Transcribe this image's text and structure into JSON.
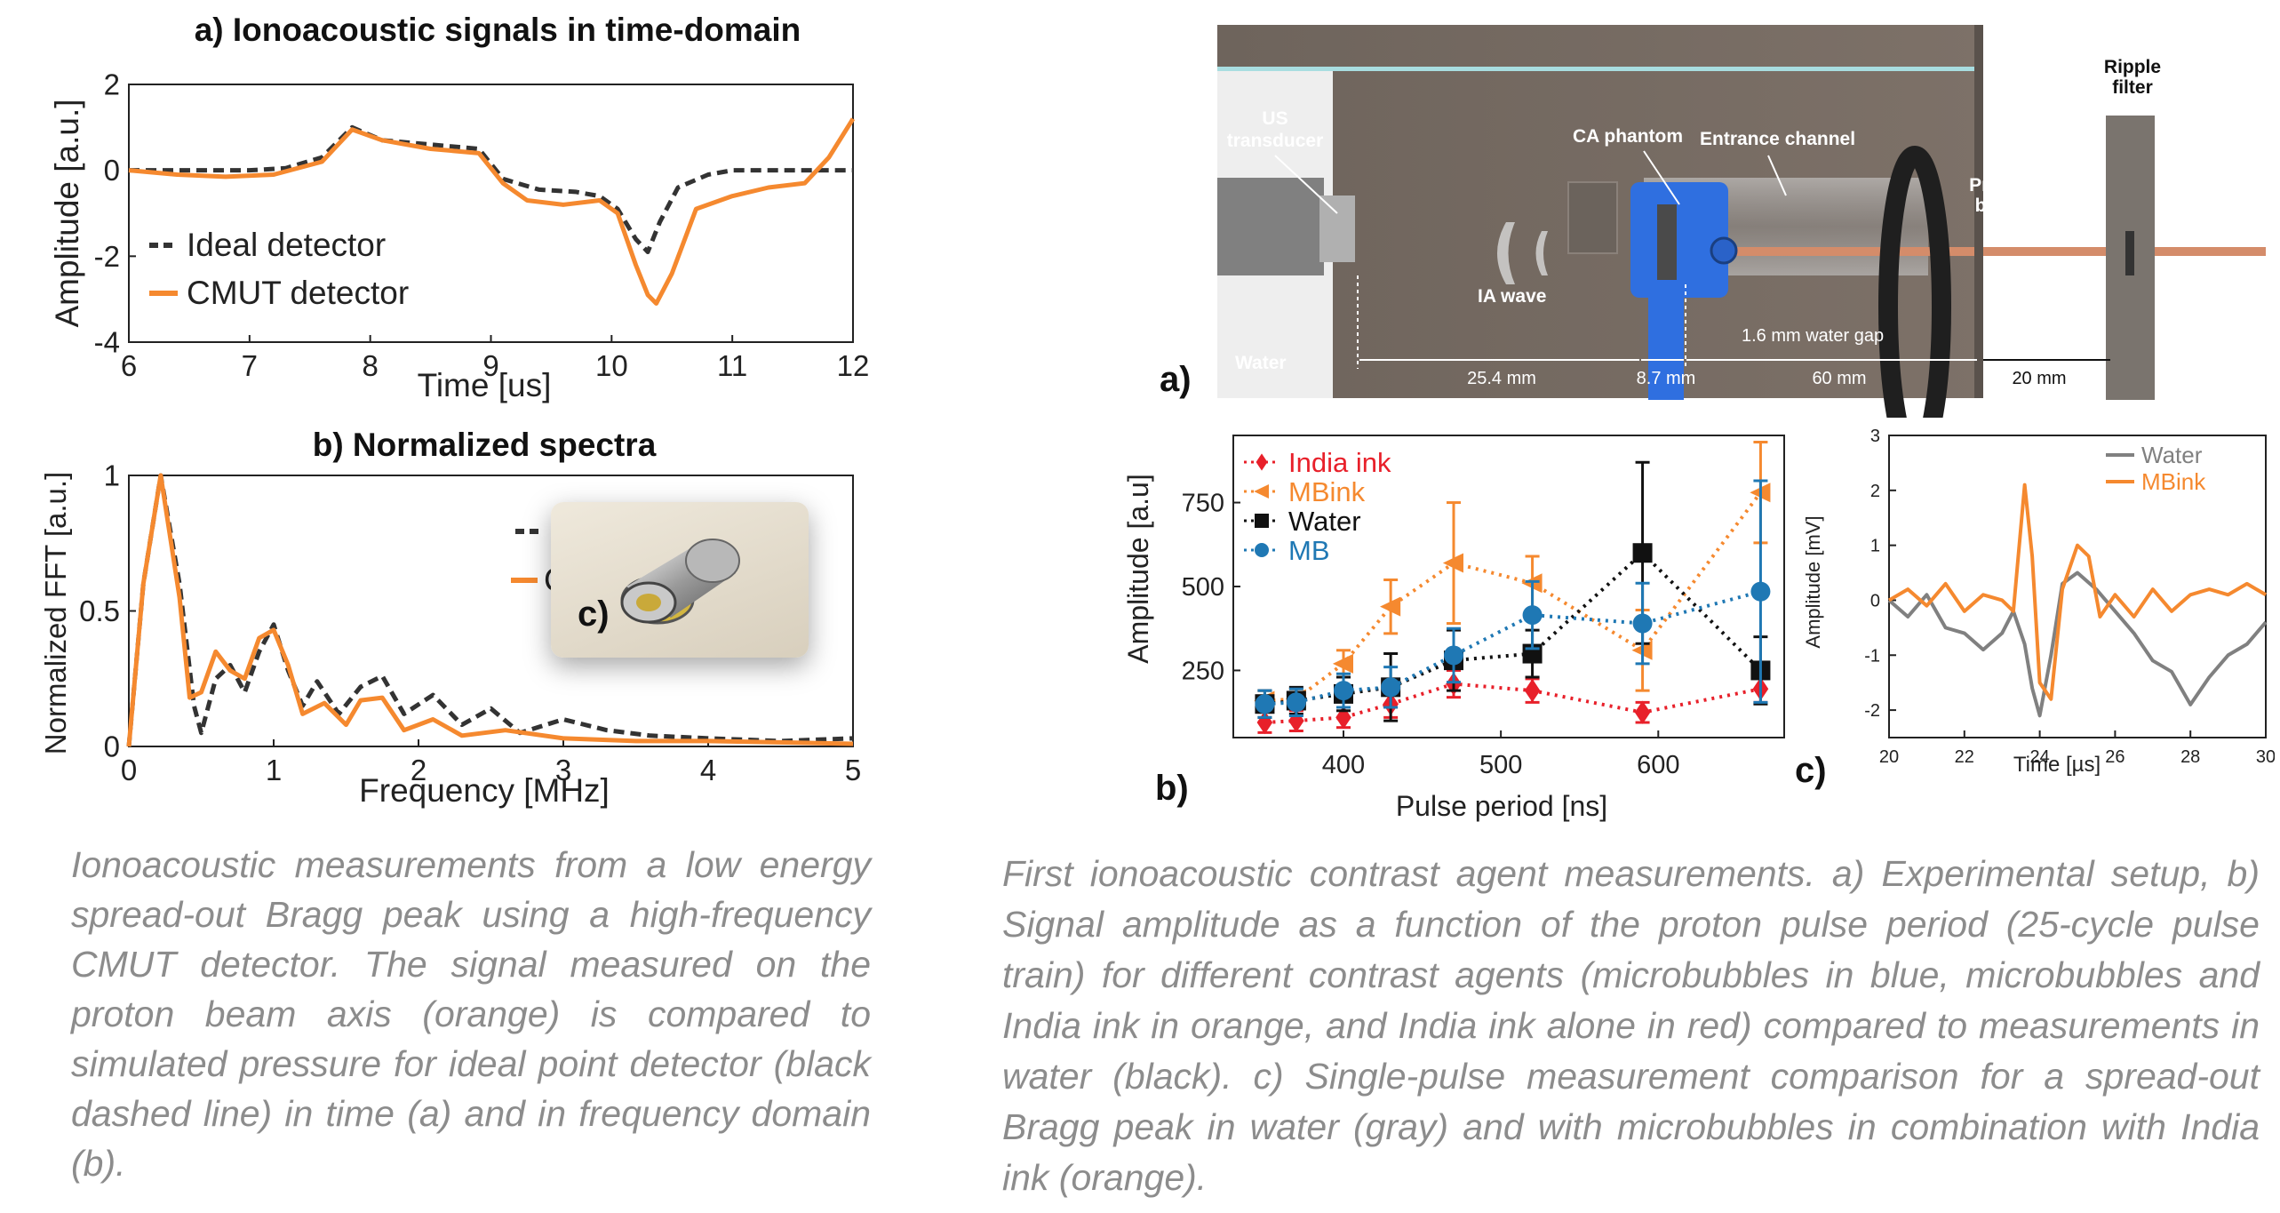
{
  "charts": {
    "a": {
      "title": "a) Ionoacoustic signals in time-domain",
      "xlabel": "Time [us]",
      "ylabel": "Amplitude [a.u.]",
      "legend": [
        "Ideal detector",
        "CMUT detector"
      ]
    },
    "b": {
      "title": "b) Normalized spectra",
      "xlabel": "Frequency [MHz]",
      "ylabel": "Normalized FFT [a.u.]",
      "inset_label": "c)",
      "legend_fragment": "C"
    },
    "setup": {
      "panel_label": "a)",
      "labels": {
        "us_transducer_1": "US",
        "us_transducer_2": "transducer",
        "ca_phantom": "CA phantom",
        "entrance_channel": "Entrance channel",
        "ripple_1": "Ripple",
        "ripple_2": "filter",
        "proton_1": "Proton",
        "proton_2": "beam",
        "ia_wave": "IA wave",
        "water": "Water",
        "gap": "1.6 mm water gap",
        "d1": "25.4 mm",
        "d2": "8.7 mm",
        "d3": "60 mm",
        "d4": "20 mm"
      }
    },
    "pulse": {
      "panel_label": "b)",
      "xlabel": "Pulse period [ns]",
      "ylabel": "Amplitude [a.u]"
    },
    "single": {
      "panel_label": "c)",
      "xlabel": "Time [µs]",
      "ylabel": "Amplitude [mV]"
    }
  },
  "chart_data": [
    {
      "type": "line",
      "title": "a) Ionoacoustic signals in time-domain",
      "xlabel": "Time [us]",
      "ylabel": "Amplitude [a.u.]",
      "xlim": [
        6,
        12
      ],
      "ylim": [
        -4,
        2
      ],
      "xticks": [
        6,
        7,
        8,
        9,
        10,
        11,
        12
      ],
      "yticks": [
        -4,
        -2,
        0,
        2
      ],
      "legend_position": "lower-left",
      "series": [
        {
          "name": "Ideal detector",
          "style": "dashed",
          "color": "#333333",
          "x": [
            6,
            6.5,
            7,
            7.3,
            7.6,
            7.85,
            8.1,
            8.5,
            8.9,
            9.1,
            9.4,
            9.7,
            9.9,
            10.05,
            10.2,
            10.3,
            10.4,
            10.55,
            10.8,
            11,
            11.5,
            12
          ],
          "y": [
            0,
            0,
            0,
            0.05,
            0.3,
            1.0,
            0.7,
            0.6,
            0.5,
            -0.2,
            -0.45,
            -0.5,
            -0.6,
            -0.9,
            -1.6,
            -1.9,
            -1.2,
            -0.4,
            -0.1,
            0,
            0,
            0
          ]
        },
        {
          "name": "CMUT detector",
          "style": "solid",
          "color": "#f5892f",
          "x": [
            6,
            6.4,
            6.8,
            7.2,
            7.6,
            7.85,
            8.1,
            8.5,
            8.9,
            9.1,
            9.3,
            9.6,
            9.9,
            10.05,
            10.2,
            10.3,
            10.37,
            10.5,
            10.7,
            11,
            11.3,
            11.6,
            11.8,
            12
          ],
          "y": [
            0,
            -0.1,
            -0.15,
            -0.1,
            0.2,
            0.95,
            0.7,
            0.5,
            0.4,
            -0.3,
            -0.7,
            -0.8,
            -0.7,
            -1.0,
            -2.2,
            -2.9,
            -3.1,
            -2.4,
            -0.9,
            -0.6,
            -0.4,
            -0.3,
            0.3,
            1.2
          ]
        }
      ]
    },
    {
      "type": "line",
      "title": "b) Normalized spectra",
      "xlabel": "Frequency [MHz]",
      "ylabel": "Normalized FFT [a.u.]",
      "xlim": [
        0,
        5
      ],
      "ylim": [
        0,
        1
      ],
      "xticks": [
        0,
        1,
        2,
        3,
        4,
        5
      ],
      "yticks": [
        0,
        0.5,
        1
      ],
      "series": [
        {
          "name": "",
          "style": "dashed",
          "color": "#333333",
          "x": [
            0,
            0.1,
            0.22,
            0.35,
            0.45,
            0.5,
            0.6,
            0.7,
            0.8,
            0.9,
            1.0,
            1.1,
            1.2,
            1.3,
            1.45,
            1.6,
            1.75,
            1.9,
            2.1,
            2.3,
            2.5,
            2.7,
            3.0,
            3.3,
            3.6,
            4.0,
            4.5,
            5.0
          ],
          "y": [
            0,
            0.6,
            1.0,
            0.6,
            0.15,
            0.05,
            0.25,
            0.3,
            0.2,
            0.35,
            0.45,
            0.28,
            0.15,
            0.24,
            0.12,
            0.22,
            0.26,
            0.12,
            0.19,
            0.08,
            0.14,
            0.05,
            0.1,
            0.06,
            0.04,
            0.03,
            0.02,
            0.03
          ]
        },
        {
          "name": "",
          "style": "solid",
          "color": "#f5892f",
          "x": [
            0,
            0.1,
            0.22,
            0.35,
            0.42,
            0.5,
            0.6,
            0.7,
            0.8,
            0.9,
            1.0,
            1.1,
            1.2,
            1.35,
            1.5,
            1.6,
            1.75,
            1.9,
            2.1,
            2.3,
            2.6,
            3.0,
            3.5,
            4.0,
            5.0
          ],
          "y": [
            0,
            0.6,
            1.0,
            0.55,
            0.18,
            0.2,
            0.35,
            0.28,
            0.25,
            0.4,
            0.43,
            0.3,
            0.12,
            0.16,
            0.08,
            0.17,
            0.18,
            0.06,
            0.1,
            0.04,
            0.06,
            0.03,
            0.02,
            0.02,
            0.01
          ]
        }
      ]
    },
    {
      "type": "line",
      "title": "",
      "xlabel": "Pulse period [ns]",
      "ylabel": "Amplitude [a.u]",
      "xlim": [
        330,
        680
      ],
      "ylim": [
        50,
        950
      ],
      "xticks": [
        400,
        500,
        600
      ],
      "yticks": [
        250,
        500,
        750
      ],
      "legend_position": "top-left",
      "series": [
        {
          "name": "India ink",
          "style": "dotted",
          "color": "#e8202a",
          "marker": "diamond",
          "x": [
            350,
            370,
            400,
            430,
            470,
            520,
            590,
            665
          ],
          "y": [
            95,
            100,
            110,
            150,
            210,
            190,
            125,
            195
          ],
          "err": [
            30,
            30,
            30,
            40,
            40,
            35,
            30,
            40
          ]
        },
        {
          "name": "MBink",
          "style": "dotted",
          "color": "#f5892f",
          "marker": "triangle-left",
          "x": [
            350,
            370,
            400,
            430,
            470,
            520,
            590,
            665
          ],
          "y": [
            160,
            165,
            270,
            440,
            570,
            510,
            310,
            780
          ],
          "err": [
            30,
            30,
            40,
            80,
            180,
            80,
            120,
            150
          ]
        },
        {
          "name": "Water",
          "style": "dotted",
          "color": "#111111",
          "marker": "square",
          "x": [
            350,
            370,
            400,
            430,
            470,
            520,
            590,
            665
          ],
          "y": [
            150,
            160,
            180,
            200,
            280,
            300,
            600,
            250
          ],
          "err": [
            40,
            40,
            50,
            100,
            90,
            70,
            270,
            100
          ]
        },
        {
          "name": "MB",
          "style": "dotted",
          "color": "#1f78b4",
          "marker": "circle",
          "x": [
            350,
            370,
            400,
            430,
            470,
            520,
            590,
            665
          ],
          "y": [
            150,
            155,
            190,
            200,
            295,
            415,
            390,
            485
          ],
          "err": [
            40,
            40,
            50,
            60,
            80,
            100,
            120,
            330
          ]
        }
      ]
    },
    {
      "type": "line",
      "title": "",
      "xlabel": "Time [µs]",
      "ylabel": "Amplitude [mV]",
      "xlim": [
        20,
        30
      ],
      "ylim": [
        -2.5,
        3
      ],
      "xticks": [
        20,
        22,
        24,
        26,
        28,
        30
      ],
      "yticks": [
        -2,
        -1,
        0,
        1,
        2,
        3
      ],
      "legend_position": "top-right",
      "series": [
        {
          "name": "Water",
          "style": "solid",
          "color": "#808080",
          "x": [
            20,
            20.5,
            21,
            21.5,
            22,
            22.5,
            23,
            23.3,
            23.6,
            23.8,
            24,
            24.3,
            24.6,
            25,
            25.5,
            26,
            26.5,
            27,
            27.5,
            28,
            28.5,
            29,
            29.5,
            30
          ],
          "y": [
            0,
            -0.3,
            0.1,
            -0.5,
            -0.6,
            -0.9,
            -0.6,
            -0.2,
            -0.8,
            -1.6,
            -2.1,
            -1.0,
            0.3,
            0.5,
            0.2,
            -0.2,
            -0.6,
            -1.1,
            -1.3,
            -1.9,
            -1.4,
            -1.0,
            -0.8,
            -0.4
          ]
        },
        {
          "name": "MBink",
          "style": "solid",
          "color": "#f5892f",
          "x": [
            20,
            20.5,
            21,
            21.5,
            22,
            22.5,
            23,
            23.3,
            23.6,
            23.8,
            24,
            24.3,
            24.6,
            25,
            25.3,
            25.6,
            26,
            26.5,
            27,
            27.5,
            28,
            28.5,
            29,
            29.5,
            30
          ],
          "y": [
            0,
            0.2,
            -0.1,
            0.3,
            -0.2,
            0.1,
            0.0,
            -0.2,
            2.1,
            0.8,
            -1.5,
            -1.8,
            0.2,
            1.0,
            0.8,
            -0.3,
            0.1,
            -0.3,
            0.2,
            -0.2,
            0.1,
            0.2,
            0.1,
            0.3,
            0.1
          ]
        }
      ]
    }
  ],
  "captions": {
    "left": "Ionoacoustic measurements from a low energy spread-out Bragg peak using a high-frequency CMUT detector. The signal measured on the proton beam axis (orange) is compared to simulated pressure for ideal point detector (black dashed line) in time (a) and in frequency domain (b).",
    "right": "First ionoacoustic contrast agent measurements. a) Experimental setup, b) Signal amplitude as a function of the proton pulse period (25-cycle pulse train) for different contrast agents (microbubbles in blue, microbubbles and India ink in orange, and India ink alone in red) compared to measurements in water (black). c) Single-pulse measurement comparison for a spread-out Bragg peak in water (gray) and with microbubbles in combination with India ink (orange)."
  }
}
